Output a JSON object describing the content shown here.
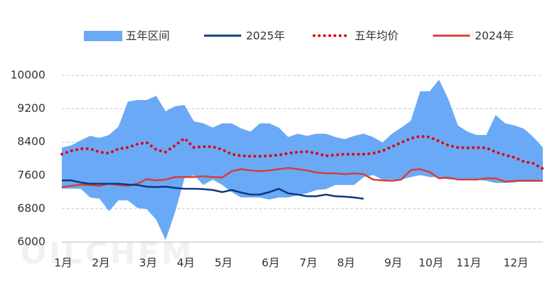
{
  "chart_data": {
    "type": "line",
    "watermark": "OILCHEM",
    "categories": [
      "1月",
      null,
      null,
      null,
      "2月",
      null,
      null,
      null,
      null,
      "3月",
      null,
      null,
      null,
      "4月",
      null,
      null,
      null,
      "5月",
      null,
      null,
      null,
      null,
      "6月",
      null,
      null,
      null,
      "7月",
      null,
      null,
      null,
      "8月",
      null,
      null,
      null,
      null,
      "9月",
      null,
      null,
      null,
      "10月",
      null,
      null,
      null,
      "11月",
      null,
      null,
      null,
      null,
      "12月",
      null,
      null,
      null
    ],
    "ylim": [
      6000,
      10000
    ],
    "yticks": [
      6000,
      6800,
      7600,
      8400,
      9200,
      10000
    ],
    "grid": true,
    "legend": "top",
    "series": [
      {
        "name": "五年区间",
        "type": "band",
        "color": "#6aa9f5",
        "upper": [
          8270,
          8320,
          8440,
          8550,
          8500,
          8570,
          8770,
          9370,
          9410,
          9410,
          9510,
          9140,
          9260,
          9290,
          8900,
          8850,
          8750,
          8850,
          8850,
          8730,
          8650,
          8850,
          8850,
          8750,
          8520,
          8600,
          8550,
          8600,
          8600,
          8520,
          8470,
          8550,
          8600,
          8520,
          8390,
          8600,
          8750,
          8910,
          9620,
          9620,
          9900,
          9420,
          8800,
          8650,
          8570,
          8570,
          9050,
          8850,
          8800,
          8720,
          8520,
          8270
        ],
        "lower": [
          7280,
          7280,
          7280,
          7070,
          7040,
          6740,
          7000,
          7000,
          6820,
          6790,
          6540,
          6050,
          6710,
          7530,
          7610,
          7370,
          7500,
          7370,
          7200,
          7070,
          7070,
          7070,
          7020,
          7070,
          7070,
          7120,
          7170,
          7250,
          7270,
          7370,
          7370,
          7370,
          7560,
          7610,
          7500,
          7500,
          7500,
          7560,
          7610,
          7560,
          7560,
          7500,
          7500,
          7500,
          7500,
          7470,
          7420,
          7420,
          7430,
          7470,
          7470,
          7470
        ]
      },
      {
        "name": "2025年",
        "type": "line",
        "color": "#0d3a7d",
        "values": [
          7480,
          7480,
          7430,
          7400,
          7400,
          7400,
          7400,
          7380,
          7370,
          7330,
          7320,
          7330,
          7300,
          7280,
          7280,
          7270,
          7250,
          7200,
          7250,
          7190,
          7140,
          7140,
          7200,
          7280,
          7170,
          7140,
          7100,
          7100,
          7140,
          7100,
          7090,
          7070,
          7040,
          null,
          null,
          null,
          null,
          null,
          null,
          null,
          null,
          null,
          null,
          null,
          null,
          null,
          null,
          null,
          null,
          null,
          null,
          null
        ]
      },
      {
        "name": "五年均价",
        "type": "dotted",
        "color": "#e00000",
        "values": [
          8110,
          8190,
          8240,
          8240,
          8160,
          8130,
          8240,
          8270,
          8350,
          8390,
          8220,
          8160,
          8320,
          8490,
          8270,
          8290,
          8290,
          8220,
          8110,
          8070,
          8060,
          8060,
          8070,
          8090,
          8130,
          8160,
          8170,
          8130,
          8070,
          8090,
          8110,
          8110,
          8110,
          8130,
          8190,
          8290,
          8390,
          8490,
          8540,
          8520,
          8420,
          8320,
          8270,
          8260,
          8270,
          8260,
          8160,
          8090,
          8030,
          7930,
          7890,
          7760
        ]
      },
      {
        "name": "2024年",
        "type": "line",
        "color": "#d43f3a",
        "values": [
          7320,
          7350,
          7380,
          7370,
          7350,
          7400,
          7370,
          7350,
          7400,
          7510,
          7480,
          7500,
          7560,
          7560,
          7560,
          7580,
          7560,
          7550,
          7700,
          7750,
          7720,
          7700,
          7720,
          7750,
          7780,
          7750,
          7720,
          7670,
          7650,
          7650,
          7630,
          7650,
          7630,
          7500,
          7480,
          7470,
          7500,
          7730,
          7750,
          7680,
          7530,
          7550,
          7500,
          7500,
          7500,
          7530,
          7530,
          7450,
          7470,
          7470,
          7470,
          7470
        ]
      }
    ]
  }
}
